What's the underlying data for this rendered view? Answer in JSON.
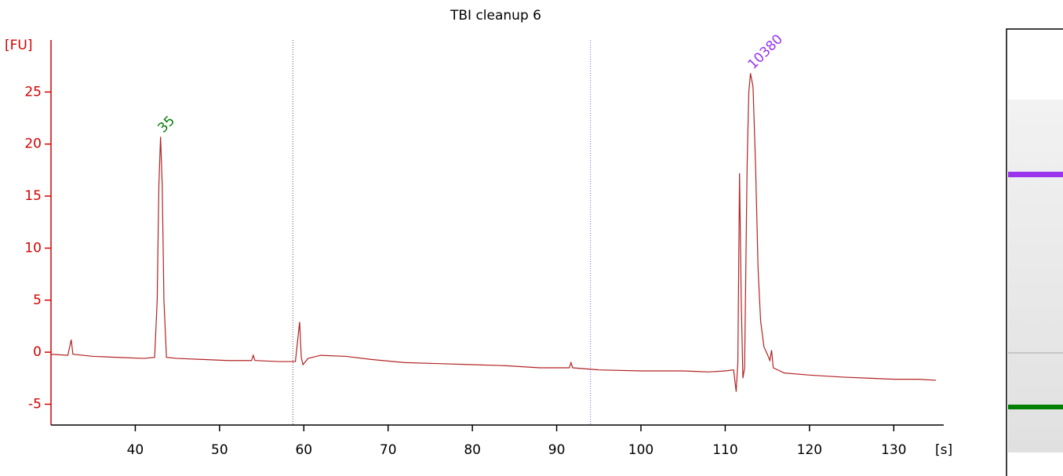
{
  "chart_data": {
    "type": "line",
    "title": "TBI cleanup 6",
    "ylabel": "[FU]",
    "xlabel": "[s]",
    "color": "#b22222",
    "x": [
      30,
      32,
      32.4,
      32.6,
      35,
      38,
      41,
      42.3,
      42.6,
      42.8,
      43,
      43.2,
      43.4,
      43.7,
      45,
      48,
      51,
      53.8,
      54,
      54.2,
      57,
      59,
      59.5,
      59.7,
      59.9,
      60.5,
      62,
      65,
      68,
      72,
      76,
      80,
      84,
      88,
      91.5,
      91.7,
      91.9,
      95,
      100,
      105,
      108,
      110,
      111,
      111.3,
      111.5,
      111.7,
      111.9,
      112.1,
      112.3,
      112.6,
      112.8,
      113,
      113.3,
      113.6,
      113.9,
      114.2,
      114.6,
      115,
      115.3,
      115.5,
      115.7,
      117,
      120,
      124,
      127,
      130,
      133,
      135
    ],
    "values": [
      -0.2,
      -0.3,
      1.2,
      -0.2,
      -0.4,
      -0.5,
      -0.6,
      -0.5,
      5,
      16,
      20.7,
      16,
      5,
      -0.5,
      -0.6,
      -0.7,
      -0.8,
      -0.8,
      -0.3,
      -0.8,
      -0.9,
      -0.9,
      2.9,
      -0.5,
      -1.2,
      -0.6,
      -0.3,
      -0.4,
      -0.7,
      -1.0,
      -1.1,
      -1.2,
      -1.3,
      -1.5,
      -1.5,
      -1.0,
      -1.5,
      -1.7,
      -1.8,
      -1.8,
      -1.9,
      -1.8,
      -1.7,
      -3.8,
      -1.0,
      17.2,
      5,
      -2.5,
      -1.5,
      18,
      25,
      26.8,
      25.5,
      18,
      8,
      3,
      0.5,
      -0.2,
      -0.8,
      0.2,
      -1.5,
      -2,
      -2.2,
      -2.4,
      -2.5,
      -2.6,
      -2.6,
      -2.7
    ],
    "xlim": [
      30,
      135
    ],
    "ylim": [
      -7,
      30
    ],
    "xticks": [
      40,
      50,
      60,
      70,
      80,
      90,
      100,
      110,
      120,
      130
    ],
    "yticks": [
      -5,
      0,
      5,
      10,
      15,
      20,
      25
    ],
    "markers": [
      58.7,
      94
    ],
    "annotations": [
      {
        "text": "35",
        "x": 43,
        "y": 21.3,
        "color": "#008000"
      },
      {
        "text": "10380",
        "x": 113,
        "y": 27.4,
        "color": "#9933ee"
      }
    ]
  }
}
